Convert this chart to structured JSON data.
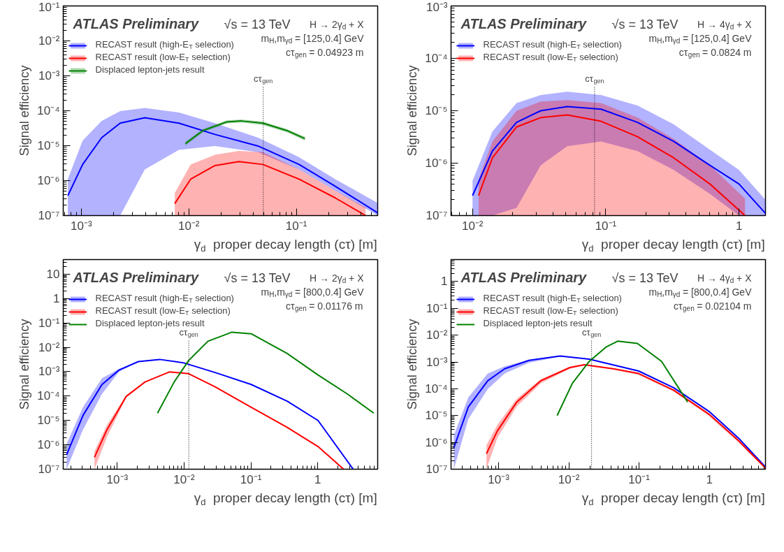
{
  "chart_data": [
    {
      "type": "line",
      "xlabel": "γ$_{d}$  proper decay length (cτ) [m]",
      "ylabel": "Signal efficiency",
      "log": "xy",
      "grid": false,
      "legend": "top left",
      "xlim": [
        0.00068,
        0.57
      ],
      "ylim": [
        1e-07,
        0.1
      ],
      "xticks": [
        {
          "value": 0.001,
          "label": "10⁻³"
        },
        {
          "value": 0.01,
          "label": "10⁻²"
        },
        {
          "value": 0.1,
          "label": "10⁻¹"
        }
      ],
      "yticks": [
        {
          "value": 1e-07,
          "label": "10⁻⁷"
        },
        {
          "value": 1e-06,
          "label": "10⁻⁶"
        },
        {
          "value": 1e-05,
          "label": "10⁻⁵"
        },
        {
          "value": 0.0001,
          "label": "10⁻⁴"
        },
        {
          "value": 0.001,
          "label": "10⁻³"
        },
        {
          "value": 0.01,
          "label": "10⁻²"
        },
        {
          "value": 0.1,
          "label": "10⁻¹"
        }
      ],
      "annotations": [
        "ATLAS Preliminary",
        "√s = 13 TeV",
        "H → 2γ$_{d}$ + X",
        "m$_{H}$,m$_{γd}$ = [125,0.4] GeV",
        "cτ$_{gen}$ = 0.04923 m"
      ],
      "ref_lines": [
        {
          "axis": "x",
          "value": 0.04923,
          "label": "cτ$_{gen}$",
          "line_style": "dotted"
        }
      ],
      "series": [
        {
          "name": "RECAST result (high-E$_{T}$ selection)",
          "color": "#0000ff",
          "x": [
            0.00075,
            0.00103,
            0.00155,
            0.0023,
            0.0039,
            0.0081,
            0.0175,
            0.044,
            0.106,
            0.23,
            0.57
          ],
          "values": [
            3.7e-07,
            2.9e-06,
            1.7e-05,
            4.4e-05,
            6.3e-05,
            4.4e-05,
            2.1e-05,
            9.8e-06,
            2.9e-06,
            6.9e-07,
            1.2e-07
          ],
          "upper": [
            1.1e-06,
            1.4e-05,
            5.1e-05,
            9.8e-05,
            0.00012,
            8.9e-05,
            4.4e-05,
            1.7e-05,
            4.7e-06,
            1.1e-06,
            2.3e-07
          ],
          "lower": [
            1e-07,
            1e-07,
            1e-07,
            1e-07,
            2.1e-06,
            7.6e-06,
            9.8e-06,
            6.5e-06,
            2.1e-06,
            5.1e-07,
            1e-07
          ]
        },
        {
          "name": "RECAST result (low-E$_{T}$ selection)",
          "color": "#ff0000",
          "x": [
            0.0074,
            0.0104,
            0.0175,
            0.0292,
            0.0489,
            0.106,
            0.23,
            0.44
          ],
          "values": [
            2.2e-07,
            1.1e-06,
            2.7e-06,
            3.5e-06,
            2.9e-06,
            1.1e-06,
            3.2e-07,
            1e-07
          ],
          "upper": [
            4.4e-07,
            2.9e-06,
            5.5e-06,
            7.1e-06,
            6.5e-06,
            2.1e-06,
            5.1e-07,
            1.7e-07
          ],
          "lower": [
            1e-07,
            1e-07,
            1e-07,
            1e-07,
            1e-07,
            1e-07,
            1e-07,
            1e-07
          ]
        },
        {
          "name": "Displaced lepton-jets result",
          "color": "#008000",
          "x": [
            0.0093,
            0.0135,
            0.0225,
            0.0308,
            0.0489,
            0.082,
            0.12
          ],
          "values": [
            1.15e-05,
            2.7e-05,
            4.8e-05,
            5.1e-05,
            4.4e-05,
            2.7e-05,
            1.6e-05
          ],
          "upper": [
            1.3e-05,
            3e-05,
            5.3e-05,
            5.6e-05,
            4.9e-05,
            3e-05,
            1.8e-05
          ],
          "lower": [
            1e-05,
            2.4e-05,
            4.3e-05,
            4.6e-05,
            3.9e-05,
            2.4e-05,
            1.4e-05
          ]
        }
      ]
    },
    {
      "type": "line",
      "xlabel": "γ$_{d}$  proper decay length (cτ) [m]",
      "ylabel": "Signal efficiency",
      "log": "xy",
      "grid": false,
      "legend": "top left",
      "xlim": [
        0.0069,
        1.58
      ],
      "ylim": [
        1e-07,
        0.001
      ],
      "xticks": [
        {
          "value": 0.01,
          "label": "10⁻²"
        },
        {
          "value": 0.1,
          "label": "10⁻¹"
        },
        1
      ],
      "yticks": [
        {
          "value": 1e-07,
          "label": "10⁻⁷"
        },
        {
          "value": 1e-06,
          "label": "10⁻⁶"
        },
        {
          "value": 1e-05,
          "label": "10⁻⁵"
        },
        {
          "value": 0.0001,
          "label": "10⁻⁴"
        },
        {
          "value": 0.001,
          "label": "10⁻³"
        }
      ],
      "annotations": [
        "ATLAS Preliminary",
        "√s = 13 TeV",
        "H → 4γ$_{d}$ + X",
        "m$_{H}$,m$_{γd}$ = [125,0.4] GeV",
        "cτ$_{gen}$ = 0.0824 m"
      ],
      "ref_lines": [
        {
          "axis": "x",
          "value": 0.0824,
          "label": "cτ$_{gen}$",
          "line_style": "dotted"
        }
      ],
      "series": [
        {
          "name": "RECAST result (high-E$_{T}$ selection)",
          "color": "#0000ff",
          "x": [
            0.01,
            0.0141,
            0.0214,
            0.0325,
            0.0514,
            0.0923,
            0.173,
            0.324,
            0.605,
            1.0,
            1.58
          ],
          "values": [
            2.4e-07,
            1.7e-06,
            6e-06,
            1e-05,
            1.2e-05,
            1.07e-05,
            6e-06,
            2.6e-06,
            9.1e-07,
            4e-07,
            1.1e-07
          ],
          "upper": [
            4.6e-07,
            4e-06,
            1.4e-05,
            2e-05,
            2.3e-05,
            2e-05,
            1.26e-05,
            5.5e-06,
            1.8e-06,
            7.4e-07,
            2e-07
          ],
          "lower": [
            1e-07,
            1e-07,
            1.4e-07,
            9.1e-07,
            2.1e-06,
            2.6e-06,
            1.7e-06,
            7.4e-07,
            2.6e-07,
            1e-07,
            1e-07
          ]
        },
        {
          "name": "RECAST result (low-E$_{T}$ selection)",
          "color": "#ff0000",
          "x": [
            0.0111,
            0.0141,
            0.0214,
            0.0325,
            0.0514,
            0.0923,
            0.173,
            0.324,
            0.605,
            1.11
          ],
          "values": [
            2.4e-07,
            1.26e-06,
            4.9e-06,
            7.4e-06,
            8.3e-06,
            6.3e-06,
            3.2e-06,
            1.26e-06,
            4e-07,
            1e-07
          ],
          "upper": [
            4.9e-07,
            2.6e-06,
            1e-05,
            1.5e-05,
            1.6e-05,
            1.4e-05,
            7.4e-06,
            2.9e-06,
            9.1e-07,
            2.1e-07
          ],
          "lower": [
            1e-07,
            1e-07,
            1e-07,
            1e-07,
            1e-07,
            1e-07,
            1e-07,
            1e-07,
            1e-07,
            1e-07
          ]
        }
      ]
    },
    {
      "type": "line",
      "xlabel": "γ$_{d}$  proper decay length (cτ) [m]",
      "ylabel": "Signal efficiency",
      "log": "xy",
      "grid": false,
      "legend": "top left",
      "xlim": [
        0.000155,
        7.9
      ],
      "ylim": [
        1e-07,
        40
      ],
      "xticks": [
        {
          "value": 0.001,
          "label": "10⁻³"
        },
        {
          "value": 0.01,
          "label": "10⁻²"
        },
        {
          "value": 0.1,
          "label": "10⁻¹"
        },
        1
      ],
      "yticks": [
        {
          "value": 1e-07,
          "label": "10⁻⁷"
        },
        {
          "value": 1e-06,
          "label": "10⁻⁶"
        },
        {
          "value": 1e-05,
          "label": "10⁻⁵"
        },
        {
          "value": 0.0001,
          "label": "10⁻⁴"
        },
        {
          "value": 0.001,
          "label": "10⁻³"
        },
        {
          "value": 0.01,
          "label": "10⁻²"
        },
        {
          "value": 0.1,
          "label": "10⁻¹"
        },
        1,
        10
      ],
      "annotations": [
        "ATLAS Preliminary",
        "√s = 13 TeV",
        "H → 2γ$_{d}$ + X",
        "m$_{H}$,m$_{γd}$ = [800,0.4] GeV",
        "cτ$_{gen}$ = 0.01176 m"
      ],
      "ref_lines": [
        {
          "axis": "x",
          "value": 0.01176,
          "label": "cτ$_{gen}$",
          "line_style": "dotted"
        }
      ],
      "series": [
        {
          "name": "RECAST result (high-E$_{T}$ selection)",
          "color": "#0000ff",
          "x": [
            0.000174,
            0.000306,
            0.00059,
            0.00106,
            0.00206,
            0.0043,
            0.0099,
            0.0291,
            0.101,
            0.349,
            1.01,
            3.4
          ],
          "values": [
            3.9e-07,
            1.6e-05,
            0.0003,
            0.00117,
            0.0026,
            0.0032,
            0.0023,
            0.00093,
            0.0003,
            6.2e-05,
            1e-05,
            1e-07
          ],
          "upper": [
            1.07e-06,
            3.5e-05,
            0.00054,
            0.0013,
            0.0027,
            0.0033,
            0.0024,
            0.00096,
            0.00031,
            6.4e-05,
            1.03e-05,
            1.03e-07
          ],
          "lower": [
            1e-07,
            4.2e-06,
            0.000123,
            0.001,
            0.0025,
            0.0031,
            0.0022,
            0.0009,
            0.00029,
            6e-05,
            9.7e-06,
            1e-07
          ]
        },
        {
          "name": "RECAST result (low-E$_{T}$ selection)",
          "color": "#ff0000",
          "x": [
            0.000455,
            0.0007,
            0.00136,
            0.0026,
            0.006,
            0.0117,
            0.0291,
            0.101,
            0.349,
            1.01,
            2.44
          ],
          "values": [
            3.1e-07,
            4.2e-06,
            9.8e-05,
            0.00038,
            0.00098,
            0.00083,
            0.00024,
            3.5e-05,
            5.2e-06,
            8.5e-07,
            1e-07
          ],
          "upper": [
            5.5e-07,
            6.5e-06,
            0.00011,
            0.0004,
            0.001,
            0.00085,
            0.00025,
            3.6e-05,
            5.4e-06,
            8.8e-07,
            1.03e-07
          ],
          "lower": [
            1e-07,
            2.1e-06,
            8.5e-05,
            0.00036,
            0.00095,
            0.00081,
            0.00023,
            3.4e-05,
            5e-06,
            8.2e-07,
            1e-07
          ]
        },
        {
          "name": "Displaced lepton-jets result",
          "color": "#008000",
          "x": [
            0.004,
            0.0071,
            0.0117,
            0.0227,
            0.052,
            0.101,
            0.349,
            1.01,
            2.77,
            6.9
          ],
          "values": [
            2e-05,
            0.00038,
            0.0029,
            0.0178,
            0.042,
            0.036,
            0.0056,
            0.00074,
            0.000123,
            2e-05
          ]
        }
      ]
    },
    {
      "type": "line",
      "xlabel": "γ$_{d}$  proper decay length (cτ) [m]",
      "ylabel": "Signal efficiency",
      "log": "xy",
      "grid": false,
      "legend": "top left",
      "xlim": [
        0.00021,
        6.3
      ],
      "ylim": [
        1e-07,
        6.6
      ],
      "xticks": [
        {
          "value": 0.001,
          "label": "10⁻³"
        },
        {
          "value": 0.01,
          "label": "10⁻²"
        },
        {
          "value": 0.1,
          "label": "10⁻¹"
        },
        1
      ],
      "yticks": [
        {
          "value": 1e-07,
          "label": "10⁻⁷"
        },
        {
          "value": 1e-06,
          "label": "10⁻⁶"
        },
        {
          "value": 1e-05,
          "label": "10⁻⁵"
        },
        {
          "value": 0.0001,
          "label": "10⁻⁴"
        },
        {
          "value": 0.001,
          "label": "10⁻³"
        },
        {
          "value": 0.01,
          "label": "10⁻²"
        },
        {
          "value": 0.1,
          "label": "10⁻¹"
        },
        1
      ],
      "annotations": [
        "ATLAS Preliminary",
        "√s = 13 TeV",
        "H → 4γ$_{d}$ + X",
        "m$_{H}$,m$_{γd}$ = [800,0.4] GeV",
        "cτ$_{gen}$ = 0.02104 m"
      ],
      "ref_lines": [
        {
          "axis": "x",
          "value": 0.02104,
          "label": "cτ$_{gen}$",
          "line_style": "dotted"
        }
      ],
      "series": [
        {
          "name": "RECAST result (high-E$_{T}$ selection)",
          "color": "#0000ff",
          "x": [
            0.00023,
            0.00037,
            0.0007,
            0.00122,
            0.0027,
            0.0075,
            0.0195,
            0.0985,
            0.31,
            1,
            2.6,
            6.3
          ],
          "values": [
            6.3e-07,
            2.1e-05,
            0.0002,
            0.00056,
            0.00115,
            0.00166,
            0.00128,
            0.00046,
            0.00011,
            1.4e-05,
            1.45e-06,
            1.2e-07
          ],
          "upper": [
            1.8e-06,
            4.8e-05,
            0.00037,
            0.00069,
            0.0012,
            0.0017,
            0.00132,
            0.00048,
            0.000115,
            1.45e-05,
            1.5e-06,
            1.3e-07
          ],
          "lower": [
            1e-07,
            7.4e-06,
            9.8e-05,
            0.00037,
            0.00093,
            0.0016,
            0.00124,
            0.00044,
            0.000105,
            1.35e-05,
            1.4e-06,
            1.1e-07
          ]
        },
        {
          "name": "RECAST result (low-E$_{T}$ selection)",
          "color": "#ff0000",
          "x": [
            0.00067,
            0.00096,
            0.00181,
            0.004,
            0.0103,
            0.0166,
            0.0429,
            0.0985,
            0.31,
            1,
            2.6,
            6.3
          ],
          "values": [
            3.8e-07,
            2.7e-06,
            3.2e-05,
            0.0002,
            0.00062,
            0.00079,
            0.00056,
            0.00037,
            8.9e-05,
            1.1e-05,
            1.17e-06,
            1.1e-07
          ],
          "upper": [
            7.8e-07,
            4.5e-06,
            4.2e-05,
            0.00023,
            0.00066,
            0.00082,
            0.00058,
            0.00038,
            9.3e-05,
            1.15e-05,
            1.25e-06,
            1.2e-07
          ],
          "lower": [
            1e-07,
            1.5e-06,
            2.2e-05,
            0.00016,
            0.00056,
            0.00074,
            0.00052,
            0.00033,
            7.9e-05,
            9.5e-06,
            1e-06,
            1e-07
          ]
        },
        {
          "name": "Displaced lepton-jets result",
          "color": "#008000",
          "x": [
            0.0068,
            0.0112,
            0.0195,
            0.0338,
            0.05,
            0.0946,
            0.209,
            0.491
          ],
          "values": [
            1e-05,
            0.00016,
            0.00105,
            0.0036,
            0.006,
            0.0049,
            0.00105,
            3.2e-05
          ]
        }
      ]
    }
  ]
}
